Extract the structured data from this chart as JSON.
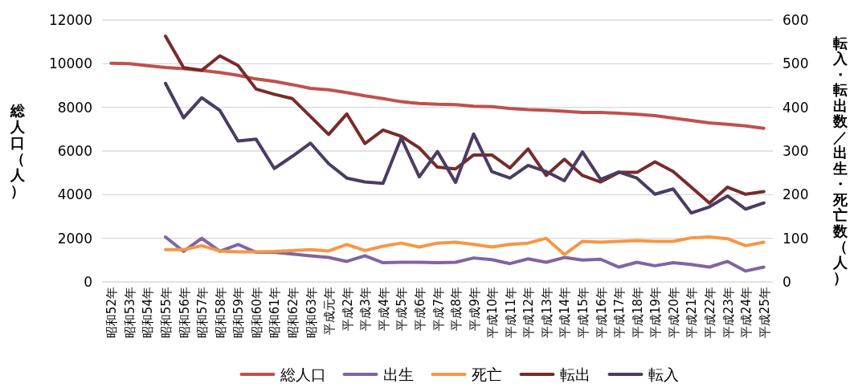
{
  "chart_data": {
    "type": "line",
    "ylabel": "総人口（人）",
    "y2label": "転入・転出数／出生・死亡数（人）",
    "categories": [
      "昭和52年",
      "昭和53年",
      "昭和54年",
      "昭和55年",
      "昭和56年",
      "昭和57年",
      "昭和58年",
      "昭和59年",
      "昭和60年",
      "昭和61年",
      "昭和62年",
      "昭和63年",
      "平成元年",
      "平成2年",
      "平成3年",
      "平成4年",
      "平成5年",
      "平成6年",
      "平成7年",
      "平成8年",
      "平成9年",
      "平成10年",
      "平成11年",
      "平成12年",
      "平成13年",
      "平成14年",
      "平成15年",
      "平成16年",
      "平成17年",
      "平成18年",
      "平成19年",
      "平成20年",
      "平成21年",
      "平成22年",
      "平成23年",
      "平成24年",
      "平成25年"
    ],
    "series": [
      {
        "name": "総人口",
        "color": "#c0504d",
        "values": [
          10020,
          10000,
          9910,
          9830,
          9770,
          9690,
          9600,
          9470,
          9300,
          9190,
          9040,
          8870,
          8810,
          8680,
          8530,
          8400,
          8260,
          8180,
          8140,
          8130,
          8050,
          8030,
          7950,
          7900,
          7870,
          7820,
          7770,
          7770,
          7730,
          7680,
          7620,
          7510,
          7400,
          7290,
          7220,
          7150,
          7040
        ]
      },
      {
        "name": "出生",
        "color": "#8064a2",
        "axis": "y2",
        "values": [
          null,
          null,
          null,
          103,
          70,
          100,
          70,
          86,
          68,
          68,
          64,
          60,
          56,
          47,
          60,
          44,
          45,
          45,
          44,
          45,
          55,
          51,
          42,
          53,
          45,
          56,
          50,
          52,
          34,
          45,
          37,
          44,
          40,
          34,
          47,
          25,
          34
        ]
      },
      {
        "name": "死亡",
        "color": "#f79646",
        "axis": "y2",
        "values": [
          null,
          null,
          null,
          74,
          74,
          83,
          71,
          69,
          69,
          70,
          72,
          74,
          71,
          86,
          72,
          82,
          89,
          80,
          89,
          91,
          86,
          80,
          86,
          89,
          100,
          63,
          93,
          91,
          93,
          95,
          93,
          93,
          101,
          103,
          99,
          83,
          91
        ]
      },
      {
        "name": "転出",
        "color": "#772c2a",
        "axis": "y2",
        "values": [
          null,
          null,
          null,
          563,
          491,
          485,
          518,
          496,
          442,
          430,
          420,
          379,
          338,
          385,
          317,
          348,
          334,
          307,
          263,
          259,
          291,
          291,
          261,
          305,
          244,
          281,
          244,
          229,
          251,
          251,
          275,
          253,
          217,
          181,
          217,
          201,
          207
        ]
      },
      {
        "name": "転入",
        "color": "#4a3c62",
        "axis": "y2",
        "values": [
          null,
          null,
          null,
          455,
          376,
          422,
          393,
          323,
          327,
          260,
          288,
          318,
          271,
          238,
          229,
          226,
          330,
          241,
          299,
          228,
          339,
          253,
          238,
          267,
          253,
          232,
          298,
          235,
          252,
          238,
          201,
          213,
          158,
          172,
          197,
          167,
          181
        ]
      }
    ],
    "ylim": [
      0,
      12000
    ],
    "yticks": [
      0,
      2000,
      4000,
      6000,
      8000,
      10000,
      12000
    ],
    "y2lim": [
      0,
      600
    ],
    "y2ticks": [
      0,
      100,
      200,
      300,
      400,
      500,
      600
    ],
    "grid": "y",
    "legend": "bottom"
  }
}
